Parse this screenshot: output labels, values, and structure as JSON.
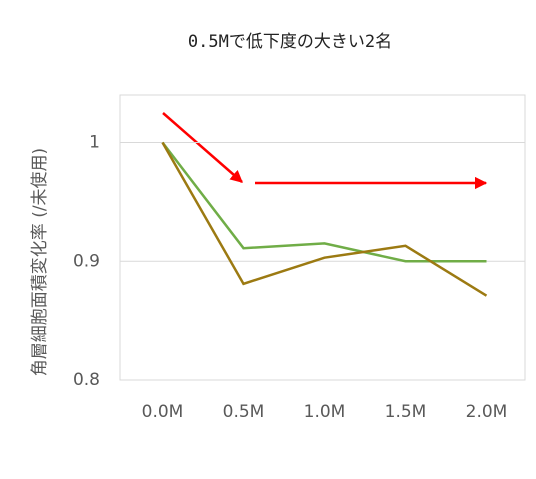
{
  "chart_data": {
    "type": "line",
    "title": "0.5Mで低下度の大きい2名",
    "y_label": "角層細胞面積変化率 (/未使用)",
    "categories": [
      "0.0M",
      "0.5M",
      "1.0M",
      "1.5M",
      "2.0M"
    ],
    "series": [
      {
        "color": "#70ad47",
        "values": [
          1,
          0.911,
          0.915,
          0.9,
          0.9
        ]
      },
      {
        "color": "#9c7a12",
        "values": [
          1,
          0.881,
          0.903,
          0.913,
          0.871
        ]
      }
    ],
    "ylim": [
      0.8,
      1.04
    ],
    "yticks": [
      0.8,
      0.9,
      1
    ],
    "grid": true
  }
}
